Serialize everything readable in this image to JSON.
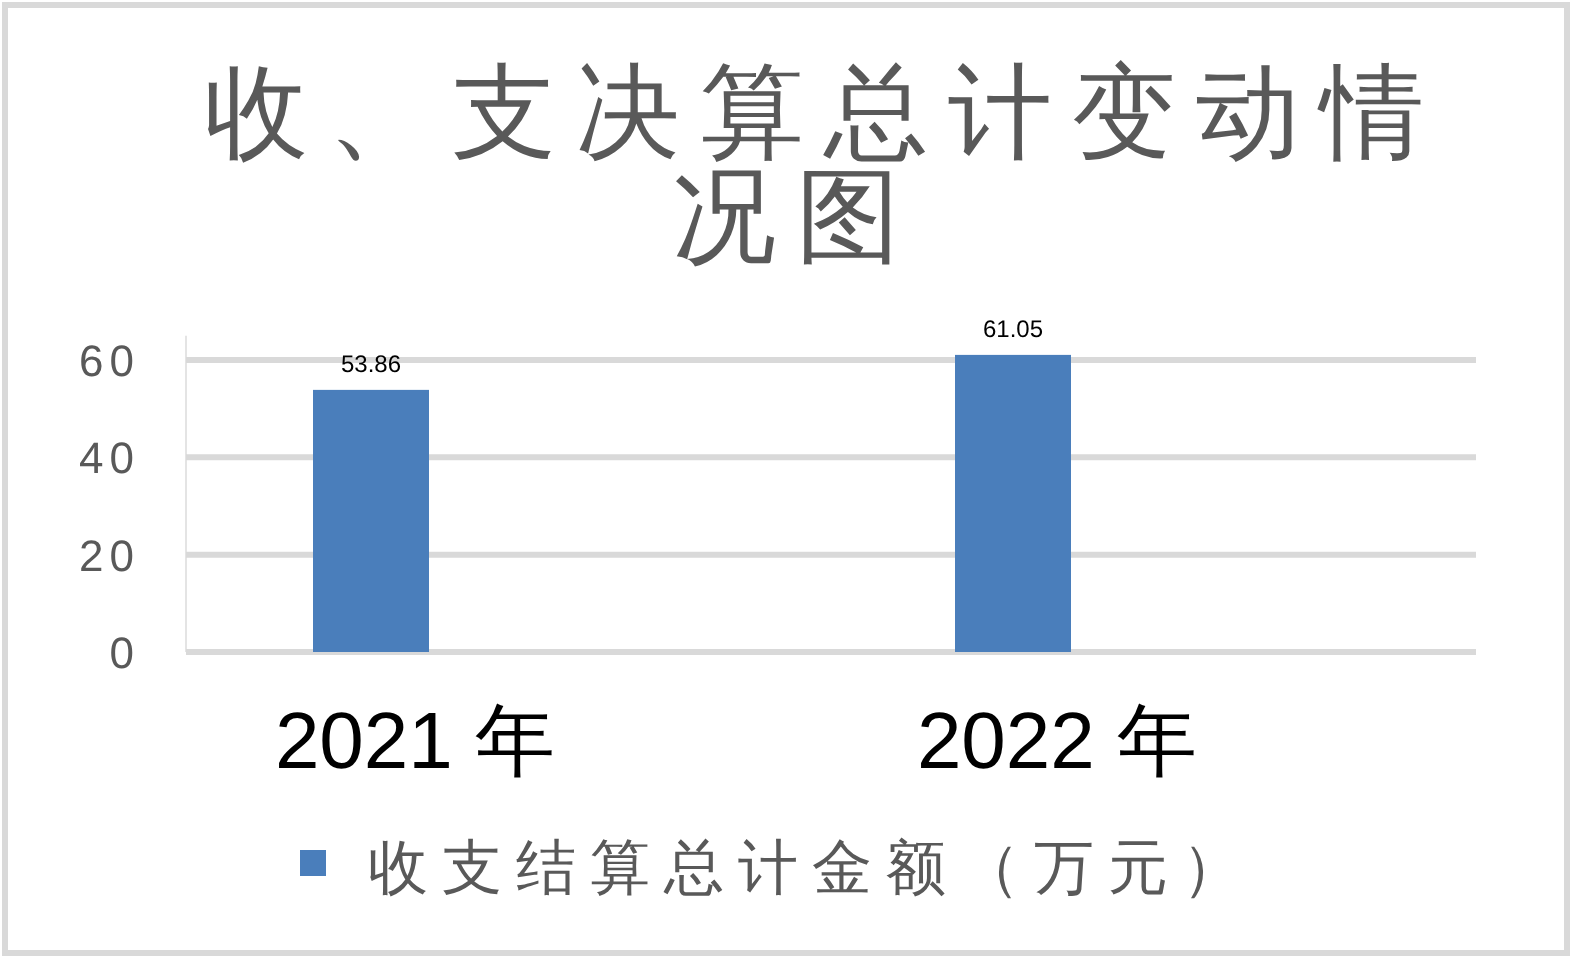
{
  "chart_data": {
    "type": "bar",
    "title": "收、支决算总计变动情况图",
    "categories": [
      "2021 年",
      "2022 年"
    ],
    "series": [
      {
        "name": "收支结算总计金额（万元）",
        "color": "#4a7ebb",
        "values": [
          53.86,
          61.05
        ]
      }
    ],
    "ylim": [
      0,
      65
    ],
    "yticks": [
      0,
      20,
      40,
      60
    ],
    "grid": "y",
    "legend": "bottom",
    "data_labels": true
  }
}
